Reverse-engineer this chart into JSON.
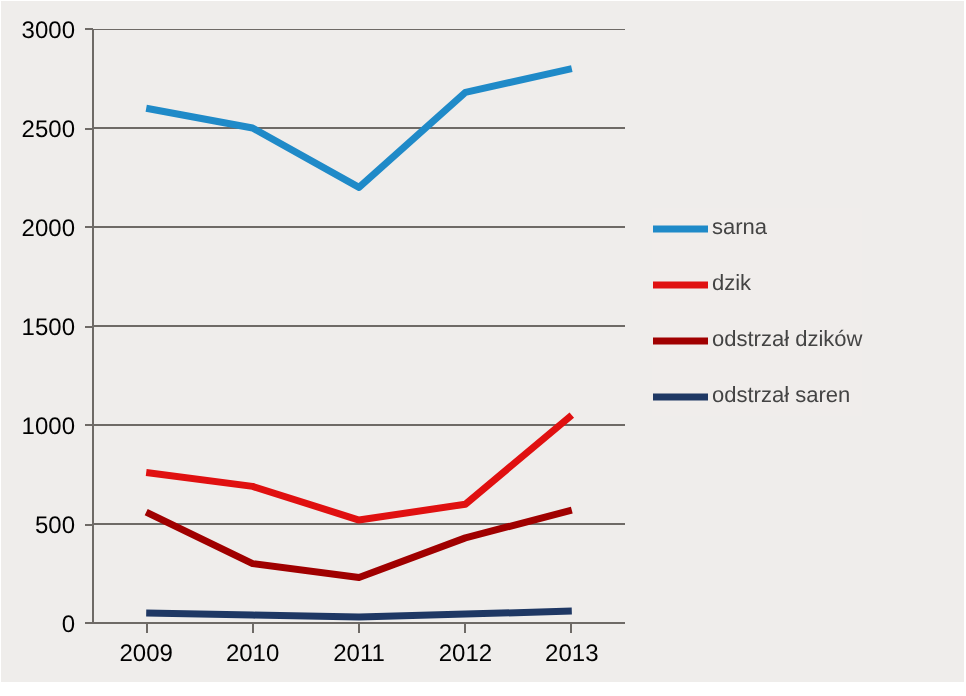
{
  "chart_data": {
    "type": "line",
    "categories": [
      "2009",
      "2010",
      "2011",
      "2012",
      "2013"
    ],
    "series": [
      {
        "name": "sarna",
        "color": "#1f8ac8",
        "values": [
          2600,
          2500,
          2200,
          2680,
          2800
        ]
      },
      {
        "name": "dzik",
        "color": "#e01010",
        "values": [
          760,
          690,
          520,
          600,
          1050
        ]
      },
      {
        "name": "odstrzał dzików",
        "color": "#a00000",
        "values": [
          560,
          300,
          230,
          430,
          570
        ]
      },
      {
        "name": "odstrzał saren",
        "color": "#1f3864",
        "values": [
          50,
          40,
          30,
          45,
          60
        ]
      }
    ],
    "ylim": [
      0,
      3000
    ],
    "yticks": [
      0,
      500,
      1000,
      1500,
      2000,
      2500,
      3000
    ],
    "grid": "y",
    "legend": "right",
    "marker": "none",
    "line_style": "solid"
  }
}
